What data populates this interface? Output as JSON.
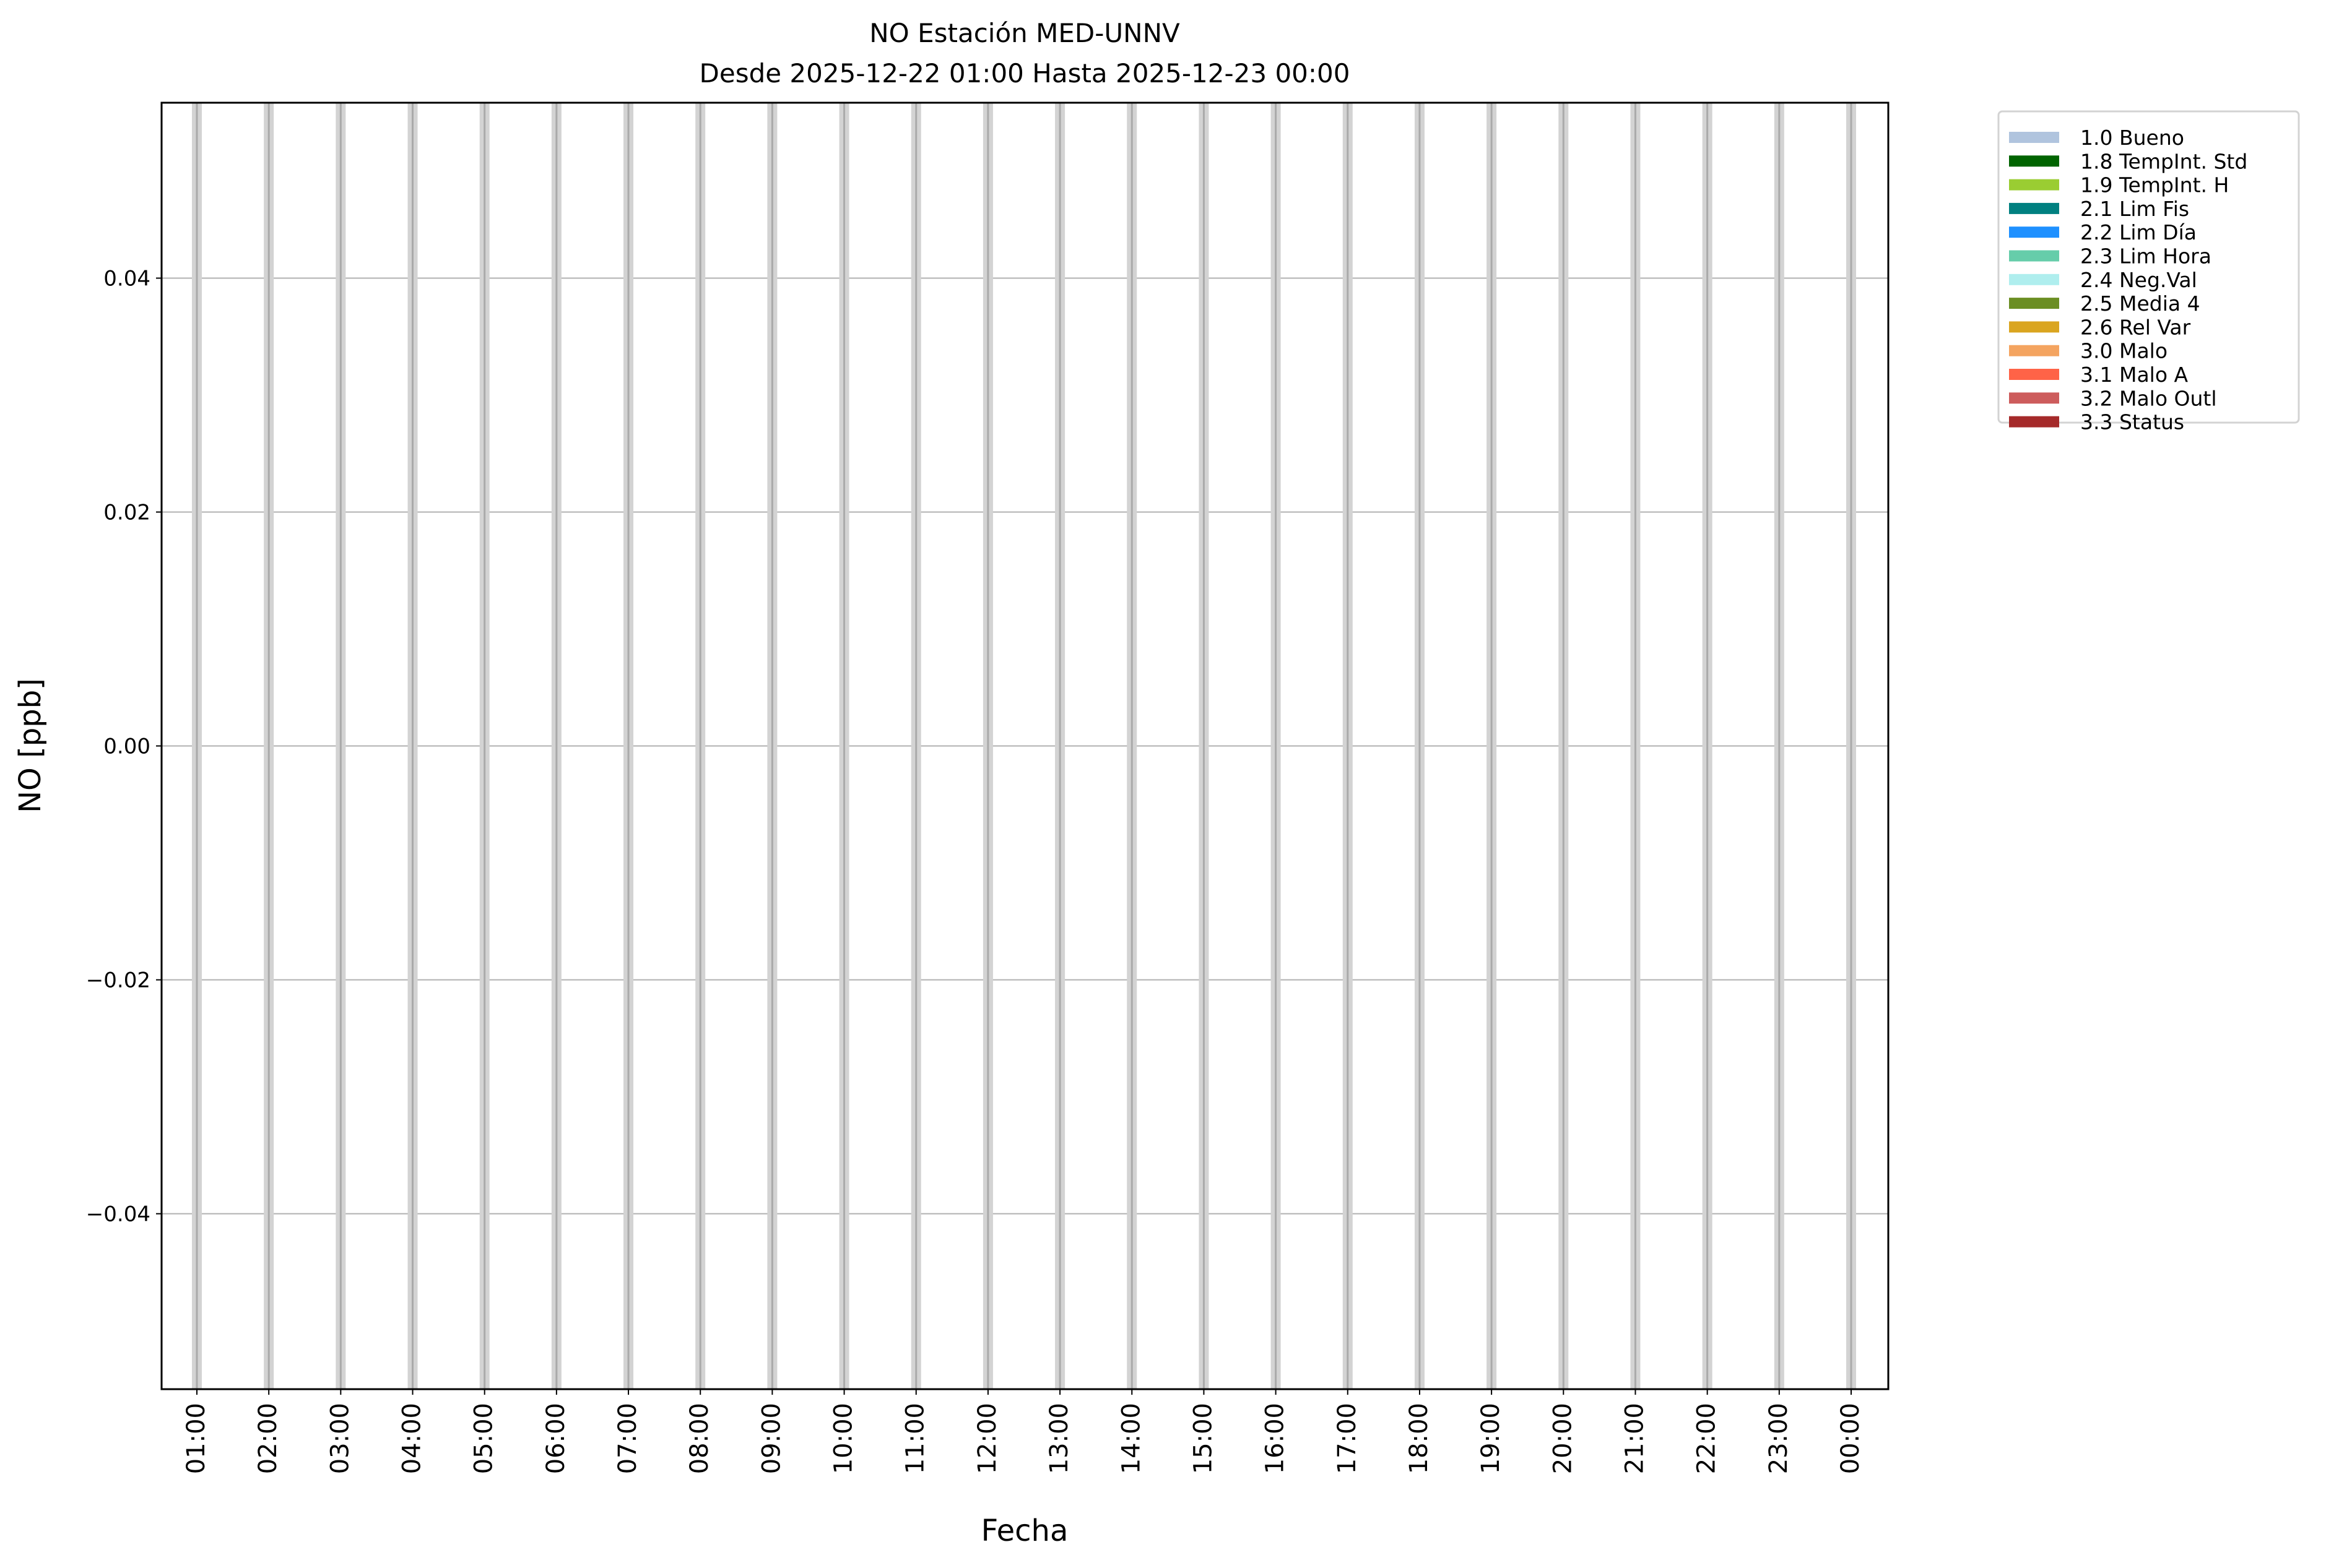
{
  "chart_data": {
    "type": "bar",
    "title": "NO Estación MED-UNNV",
    "subtitle": "Desde 2025-12-22 01:00 Hasta 2025-12-23 00:00",
    "xlabel": "Fecha",
    "ylabel": "NO [ppb]",
    "ylim": [
      -0.055,
      0.055
    ],
    "yticks": [
      -0.04,
      -0.02,
      0.0,
      0.02,
      0.04
    ],
    "ytick_labels": [
      "−0.04",
      "−0.02",
      "0.00",
      "0.02",
      "0.04"
    ],
    "categories": [
      "01:00",
      "02:00",
      "03:00",
      "04:00",
      "05:00",
      "06:00",
      "07:00",
      "08:00",
      "09:00",
      "10:00",
      "11:00",
      "12:00",
      "13:00",
      "14:00",
      "15:00",
      "16:00",
      "17:00",
      "18:00",
      "19:00",
      "20:00",
      "21:00",
      "22:00",
      "23:00",
      "00:00"
    ],
    "grid": "y",
    "hour_marker_color": "#d3d3d3",
    "legend_position": "outside-top-right",
    "legend": [
      {
        "label": "1.0 Bueno",
        "color": "#b0c4de"
      },
      {
        "label": "1.8 TempInt. Std",
        "color": "#006400"
      },
      {
        "label": "1.9 TempInt. H",
        "color": "#9acd32"
      },
      {
        "label": "2.1 Lim Fis",
        "color": "#008080"
      },
      {
        "label": "2.2 Lim Día",
        "color": "#1e90ff"
      },
      {
        "label": "2.3 Lim Hora",
        "color": "#66cdaa"
      },
      {
        "label": "2.4 Neg.Val",
        "color": "#afeeee"
      },
      {
        "label": "2.5 Media 4",
        "color": "#6b8e23"
      },
      {
        "label": "2.6 Rel Var",
        "color": "#daa520"
      },
      {
        "label": "3.0 Malo",
        "color": "#f4a460"
      },
      {
        "label": "3.1 Malo A",
        "color": "#ff6347"
      },
      {
        "label": "3.2 Malo Outl",
        "color": "#cd5c5c"
      },
      {
        "label": "3.3 Status",
        "color": "#a52a2a"
      }
    ]
  }
}
